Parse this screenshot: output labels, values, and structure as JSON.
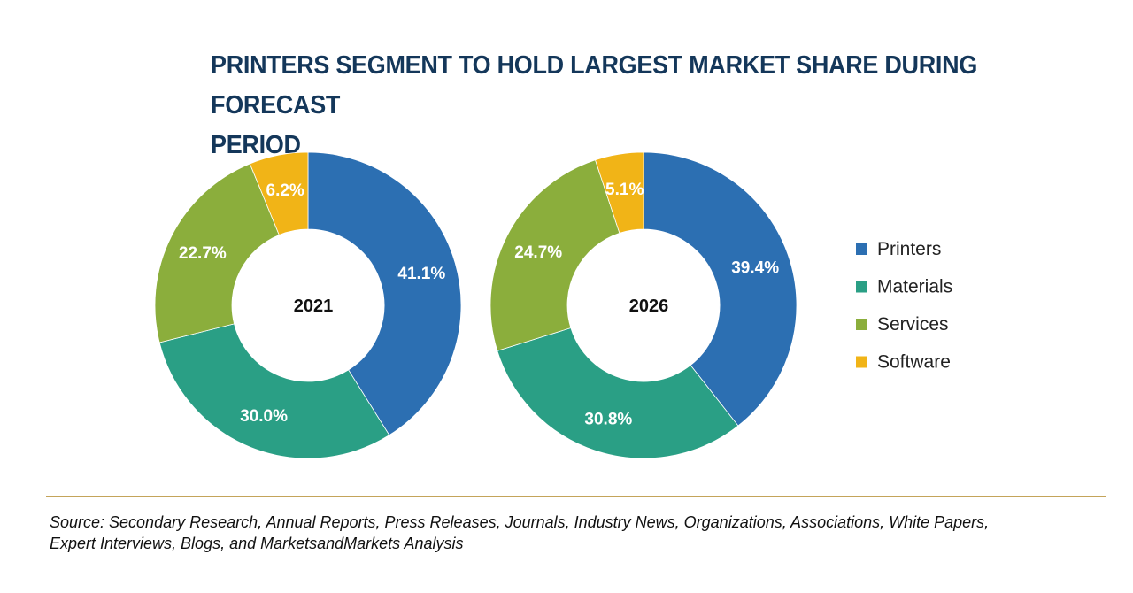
{
  "chart_data": {
    "type": "donut",
    "title": "PRINTERS SEGMENT TO HOLD LARGEST MARKET SHARE DURING FORECAST PERIOD",
    "title_lines": [
      "PRINTERS SEGMENT TO HOLD LARGEST MARKET SHARE DURING FORECAST",
      "PERIOD"
    ],
    "categories": [
      "Printers",
      "Materials",
      "Services",
      "Software"
    ],
    "colors": {
      "Printers": "#2c6fb2",
      "Materials": "#2a9f85",
      "Services": "#8bae3c",
      "Software": "#f1b417"
    },
    "charts": [
      {
        "center_label": "2021",
        "values": [
          41.1,
          30.0,
          22.7,
          6.2
        ],
        "labels": [
          "41.1%",
          "30.0%",
          "22.7%",
          "6.2%"
        ]
      },
      {
        "center_label": "2026",
        "values": [
          39.4,
          30.8,
          24.7,
          5.1
        ],
        "labels": [
          "39.4%",
          "30.8%",
          "24.7%",
          "5.1%"
        ]
      }
    ],
    "legend_position": "right"
  },
  "source": {
    "line1": "Source: Secondary Research, Annual Reports, Press Releases, Journals, Industry News, Organizations, Associations, White Papers,",
    "line2": "Expert Interviews, Blogs, and MarketsandMarkets Analysis"
  }
}
